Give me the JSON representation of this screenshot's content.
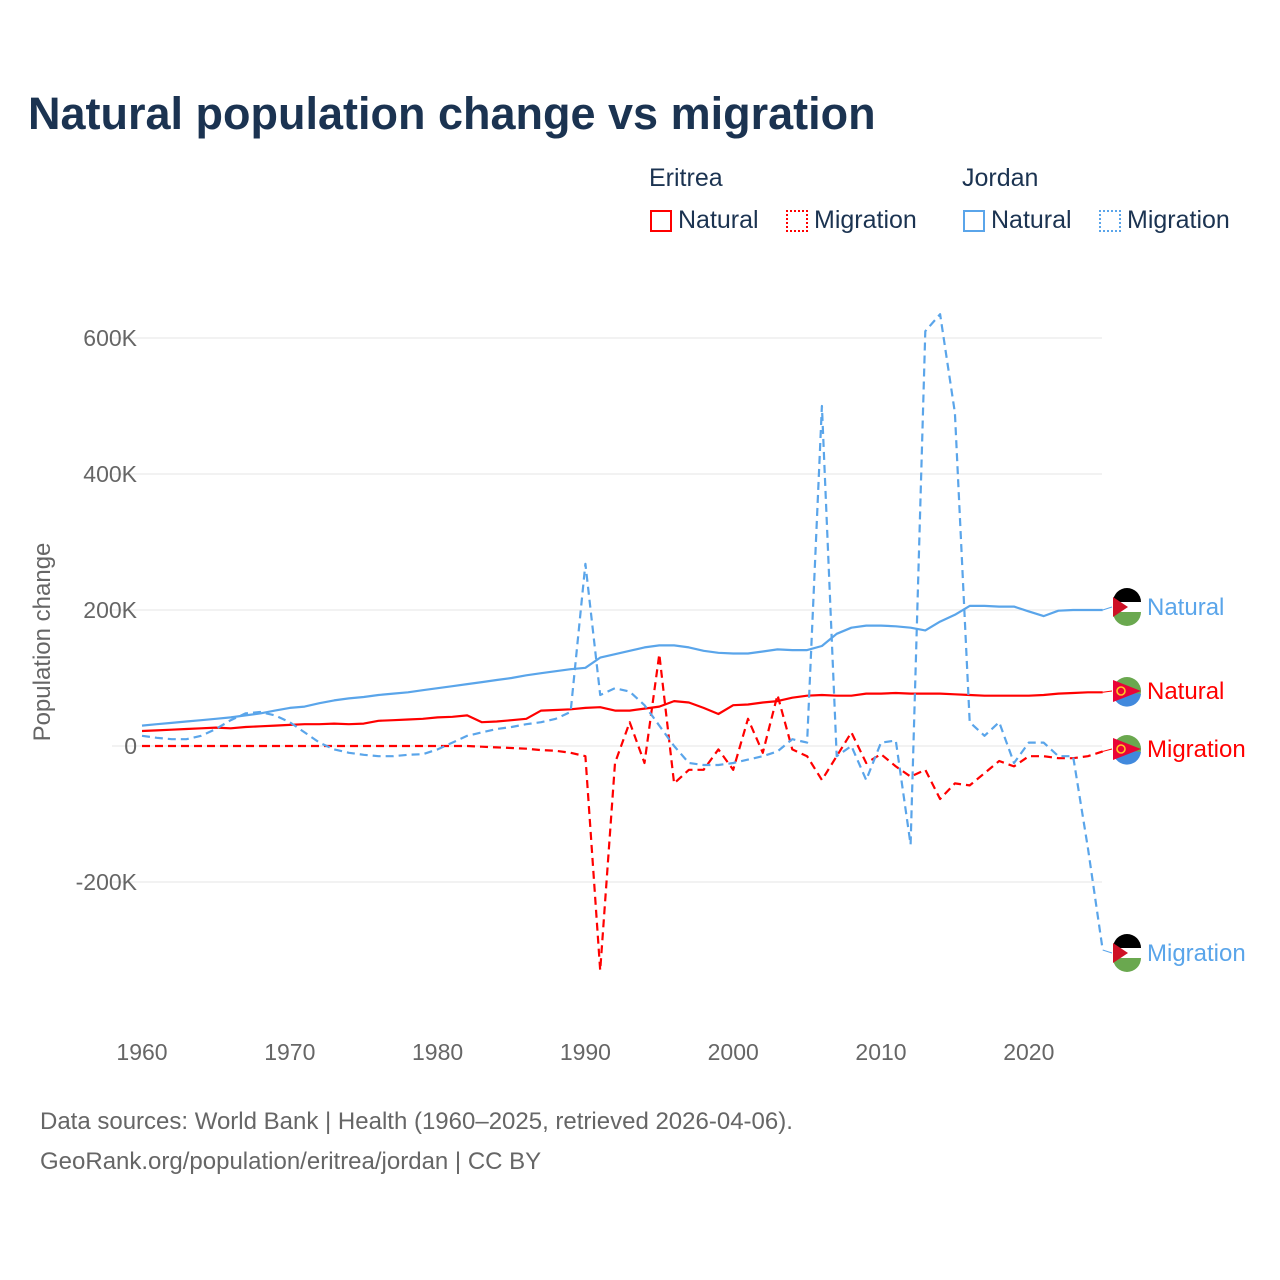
{
  "title": "Natural population change vs migration",
  "legend": {
    "groups": [
      {
        "name": "Eritrea",
        "items": [
          "Natural",
          "Migration"
        ]
      },
      {
        "name": "Jordan",
        "items": [
          "Natural",
          "Migration"
        ]
      }
    ]
  },
  "footer": {
    "line1": "Data sources: World Bank | Health (1960–2025, retrieved 2026-04-06).",
    "line2": "GeoRank.org/population/eritrea/jordan | CC BY"
  },
  "colors": {
    "eritrea": "#ff0000",
    "jordan": "#5aa5ea",
    "grid": "#e6e6e6",
    "title": "#1b3351"
  },
  "chart_data": {
    "type": "line",
    "title": "Natural population change vs migration",
    "xlabel": "",
    "ylabel": "Population change",
    "xlim": [
      1960,
      2025
    ],
    "ylim": [
      -350000,
      650000
    ],
    "x_ticks": [
      1960,
      1970,
      1980,
      1990,
      2000,
      2010,
      2020
    ],
    "x_tick_labels": [
      "1960",
      "1970",
      "1980",
      "1990",
      "2000",
      "2010",
      "2020"
    ],
    "y_ticks": [
      -200000,
      0,
      200000,
      400000,
      600000
    ],
    "y_tick_labels": [
      "-200K",
      "0",
      "200K",
      "400K",
      "600K"
    ],
    "grid": true,
    "legend_position": "top-right",
    "x_start": 1960,
    "series": [
      {
        "name": "Eritrea Natural",
        "country": "Eritrea",
        "kind": "Natural",
        "end_label": "Natural",
        "color": "#ff0000",
        "dash": false,
        "values_k": [
          22,
          23,
          24,
          25,
          26,
          27,
          26,
          28,
          29,
          30,
          31,
          32,
          32,
          33,
          32,
          33,
          37,
          38,
          39,
          40,
          42,
          43,
          45,
          35,
          36,
          38,
          40,
          52,
          53,
          54,
          56,
          57,
          52,
          52,
          55,
          58,
          66,
          64,
          56,
          47,
          60,
          61,
          64,
          66,
          71,
          74,
          75,
          74,
          74,
          77,
          77,
          78,
          77,
          77,
          77,
          76,
          75,
          74,
          74,
          74,
          74,
          75,
          77,
          78,
          79,
          79
        ]
      },
      {
        "name": "Eritrea Migration",
        "country": "Eritrea",
        "kind": "Migration",
        "end_label": "Migration",
        "color": "#ff0000",
        "dash": true,
        "values_k": [
          0,
          0,
          0,
          0,
          0,
          0,
          0,
          0,
          0,
          0,
          0,
          0,
          0,
          0,
          0,
          0,
          0,
          0,
          0,
          0,
          0,
          0,
          0,
          -1,
          -2,
          -3,
          -4,
          -6,
          -7,
          -10,
          -15,
          -330,
          -25,
          35,
          -25,
          135,
          -55,
          -35,
          -35,
          -5,
          -35,
          40,
          -10,
          75,
          -5,
          -15,
          -50,
          -15,
          20,
          -25,
          -12,
          -30,
          -45,
          -35,
          -78,
          -55,
          -58,
          -40,
          -22,
          -30,
          -15,
          -15,
          -18,
          -18,
          -15,
          -8
        ]
      },
      {
        "name": "Jordan Natural",
        "country": "Jordan",
        "kind": "Natural",
        "end_label": "Natural",
        "color": "#5aa5ea",
        "dash": false,
        "values_k": [
          30,
          32,
          34,
          36,
          38,
          40,
          42,
          45,
          48,
          52,
          56,
          58,
          63,
          67,
          70,
          72,
          75,
          77,
          79,
          82,
          85,
          88,
          91,
          94,
          97,
          100,
          104,
          107,
          110,
          113,
          115,
          130,
          135,
          140,
          145,
          148,
          148,
          145,
          140,
          137,
          136,
          136,
          139,
          142,
          141,
          141,
          147,
          165,
          174,
          177,
          177,
          176,
          174,
          170,
          183,
          193,
          206,
          206,
          205,
          205,
          198,
          191,
          199,
          200,
          200,
          200
        ]
      },
      {
        "name": "Jordan Migration",
        "country": "Jordan",
        "kind": "Migration",
        "end_label": "Migration",
        "color": "#5aa5ea",
        "dash": true,
        "values_k": [
          15,
          12,
          10,
          10,
          15,
          25,
          38,
          48,
          50,
          45,
          35,
          20,
          5,
          -5,
          -10,
          -13,
          -15,
          -15,
          -13,
          -12,
          -5,
          5,
          15,
          20,
          25,
          28,
          32,
          35,
          40,
          50,
          268,
          75,
          85,
          80,
          60,
          30,
          0,
          -25,
          -28,
          -28,
          -25,
          -20,
          -15,
          -8,
          10,
          5,
          500,
          -15,
          0,
          -50,
          5,
          8,
          -145,
          610,
          635,
          490,
          35,
          15,
          35,
          -25,
          5,
          5,
          -15,
          -15,
          -150,
          -300
        ]
      }
    ]
  }
}
